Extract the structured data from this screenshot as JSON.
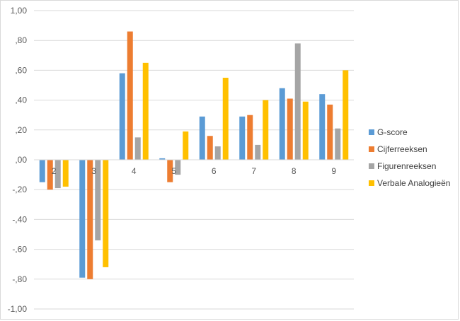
{
  "chart_data": {
    "type": "bar",
    "categories": [
      "2",
      "3",
      "4",
      "5",
      "6",
      "7",
      "8",
      "9"
    ],
    "series": [
      {
        "name": "G-score",
        "color": "#5b9bd5",
        "values": [
          -0.15,
          -0.79,
          0.58,
          0.01,
          0.29,
          0.29,
          0.48,
          0.44
        ]
      },
      {
        "name": "Cijferreeksen",
        "color": "#ed7d31",
        "values": [
          -0.2,
          -0.8,
          0.86,
          -0.15,
          0.16,
          0.3,
          0.41,
          0.37
        ]
      },
      {
        "name": "Figurenreeksen",
        "color": "#a5a5a5",
        "values": [
          -0.19,
          -0.54,
          0.15,
          -0.1,
          0.09,
          0.1,
          0.78,
          0.21
        ]
      },
      {
        "name": "Verbale Analogieën",
        "color": "#ffc000",
        "values": [
          -0.18,
          -0.72,
          0.65,
          0.19,
          0.55,
          0.4,
          0.39,
          0.6
        ]
      }
    ],
    "yticks": [
      "1,00",
      ",80",
      ",60",
      ",40",
      ",20",
      ",00",
      "-,20",
      "-,40",
      "-,60",
      "-,80",
      "-1,00"
    ],
    "ylim": [
      -1.0,
      1.0
    ],
    "grid": true,
    "legend_position": "right"
  }
}
